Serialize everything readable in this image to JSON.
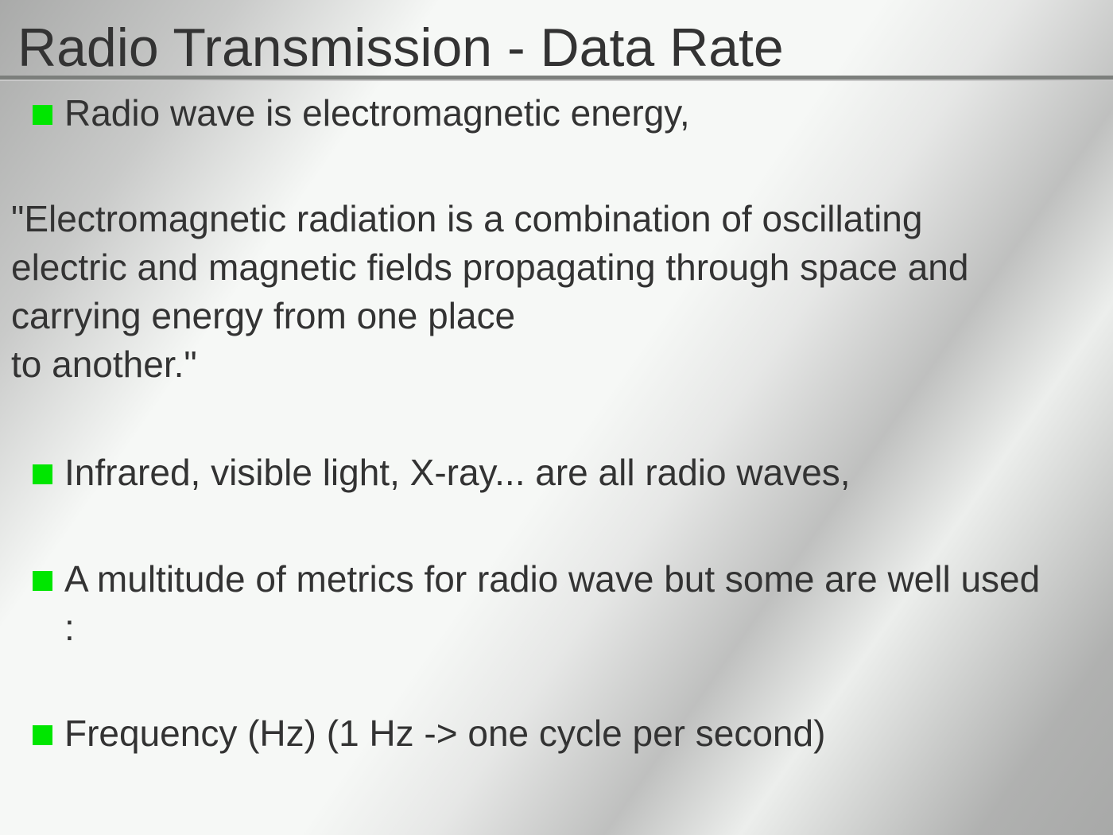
{
  "title": "Radio Transmission - Data Rate",
  "bullets": [
    "Radio wave is electromagnetic energy,",
    "Infrared, visible light, X-ray... are all radio waves,",
    "A multitude of metrics for radio wave but some are well used :",
    "Frequency (Hz) (1 Hz -> one cycle per second)"
  ],
  "quote": {
    "lines": [
      "\"Electromagnetic radiation is a combination of oscillating",
      "electric and magnetic fields propagating through space and",
      "carrying energy from one place",
      "to another.\""
    ]
  }
}
